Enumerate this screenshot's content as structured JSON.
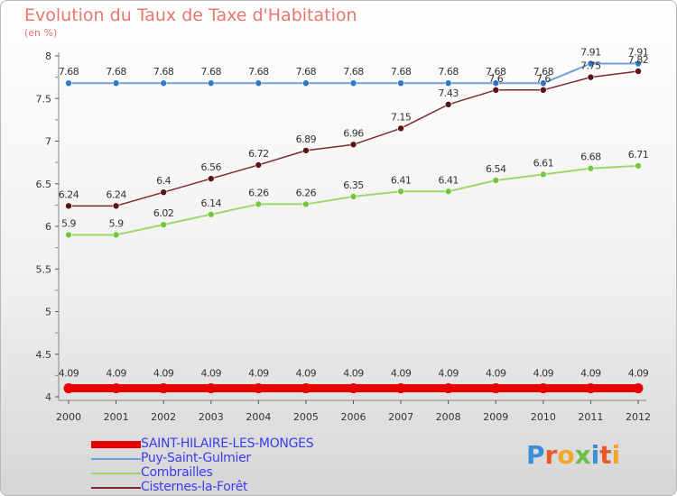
{
  "title": "Evolution du Taux de Taxe d'Habitation",
  "subtitle": "(en %)",
  "brand": {
    "letters": [
      {
        "ch": "P",
        "color": "#3a8fd8"
      },
      {
        "ch": "r",
        "color": "#e85a2a"
      },
      {
        "ch": "o",
        "color": "#f5a623"
      },
      {
        "ch": "x",
        "color": "#6cc04a"
      },
      {
        "ch": "i",
        "color": "#3a8fd8"
      },
      {
        "ch": "t",
        "color": "#e85a2a"
      },
      {
        "ch": "i",
        "color": "#f5a623"
      }
    ]
  },
  "chart_data": {
    "type": "line",
    "x": [
      "2000",
      "2001",
      "2002",
      "2003",
      "2004",
      "2005",
      "2006",
      "2007",
      "2008",
      "2009",
      "2010",
      "2011",
      "2012"
    ],
    "ylim": [
      4,
      8
    ],
    "yticks": [
      "4",
      "4.5",
      "5",
      "5.5",
      "6",
      "6.5",
      "7",
      "7.5",
      "8"
    ],
    "grid": false,
    "legend_position": "bottom-left",
    "series": [
      {
        "name": "SAINT-HILAIRE-LES-MONGES",
        "color": "#e80000",
        "width": 9,
        "values": [
          4.1,
          4.1,
          4.1,
          4.1,
          4.1,
          4.1,
          4.1,
          4.1,
          4.1,
          4.1,
          4.1,
          4.1,
          4.1
        ],
        "labels": [
          "4.09",
          "4.09",
          "4.09",
          "4.09",
          "4.09",
          "4.09",
          "4.09",
          "4.09",
          "4.09",
          "4.09",
          "4.09",
          "4.09",
          "4.09"
        ]
      },
      {
        "name": "Puy-Saint-Gulmier",
        "color": "#6fa0d8",
        "point": "#2f78c8",
        "width": 2,
        "values": [
          7.68,
          7.68,
          7.68,
          7.68,
          7.68,
          7.68,
          7.68,
          7.68,
          7.68,
          7.68,
          7.68,
          7.91,
          7.91
        ],
        "labels": [
          "7.68",
          "7.68",
          "7.68",
          "7.68",
          "7.68",
          "7.68",
          "7.68",
          "7.68",
          "7.68",
          "7.68",
          "7.68",
          "7.91",
          "7.91"
        ]
      },
      {
        "name": "Combrailles",
        "color": "#9ed86a",
        "point": "#72c83c",
        "width": 2,
        "values": [
          5.9,
          5.9,
          6.02,
          6.14,
          6.26,
          6.26,
          6.35,
          6.41,
          6.41,
          6.54,
          6.61,
          6.68,
          6.71
        ],
        "labels": [
          "5.9",
          "5.9",
          "6.02",
          "6.14",
          "6.26",
          "6.26",
          "6.35",
          "6.41",
          "6.41",
          "6.54",
          "6.61",
          "6.68",
          "6.71"
        ]
      },
      {
        "name": "Cisternes-la-Forêt",
        "color": "#7a2a2a",
        "point": "#5a1414",
        "width": 1.5,
        "values": [
          6.24,
          6.24,
          6.4,
          6.56,
          6.72,
          6.89,
          6.96,
          7.15,
          7.43,
          7.6,
          7.6,
          7.75,
          7.82
        ],
        "labels": [
          "6.24",
          "6.24",
          "6.4",
          "6.56",
          "6.72",
          "6.89",
          "6.96",
          "7.15",
          "7.43",
          "7.6",
          "7.6",
          "7.75",
          "7.82"
        ]
      }
    ]
  }
}
